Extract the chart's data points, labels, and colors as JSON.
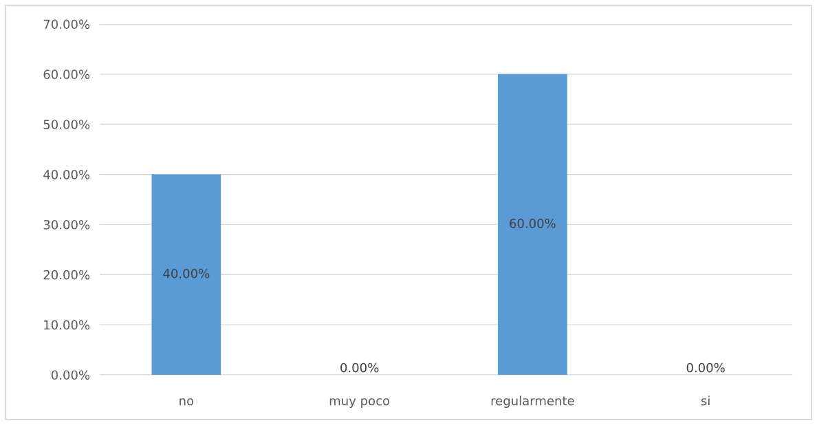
{
  "chart_data": {
    "type": "bar",
    "categories": [
      "no",
      "muy poco",
      "regularmente",
      "si"
    ],
    "values": [
      40,
      0,
      60,
      0
    ],
    "color": "#5b9bd5",
    "value_labels": [
      "40.00%",
      "0.00%",
      "60.00%",
      "0.00%"
    ],
    "ylim": [
      0,
      70
    ],
    "yticks": [
      {
        "value": 0,
        "label": "0.00%"
      },
      {
        "value": 10,
        "label": "10.00%"
      },
      {
        "value": 20,
        "label": "20.00%"
      },
      {
        "value": 30,
        "label": "30.00%"
      },
      {
        "value": 40,
        "label": "40.00%"
      },
      {
        "value": 50,
        "label": "50.00%"
      },
      {
        "value": 60,
        "label": "60.00%"
      },
      {
        "value": 70,
        "label": "70.00%"
      }
    ],
    "grid": "y",
    "legend": false
  }
}
